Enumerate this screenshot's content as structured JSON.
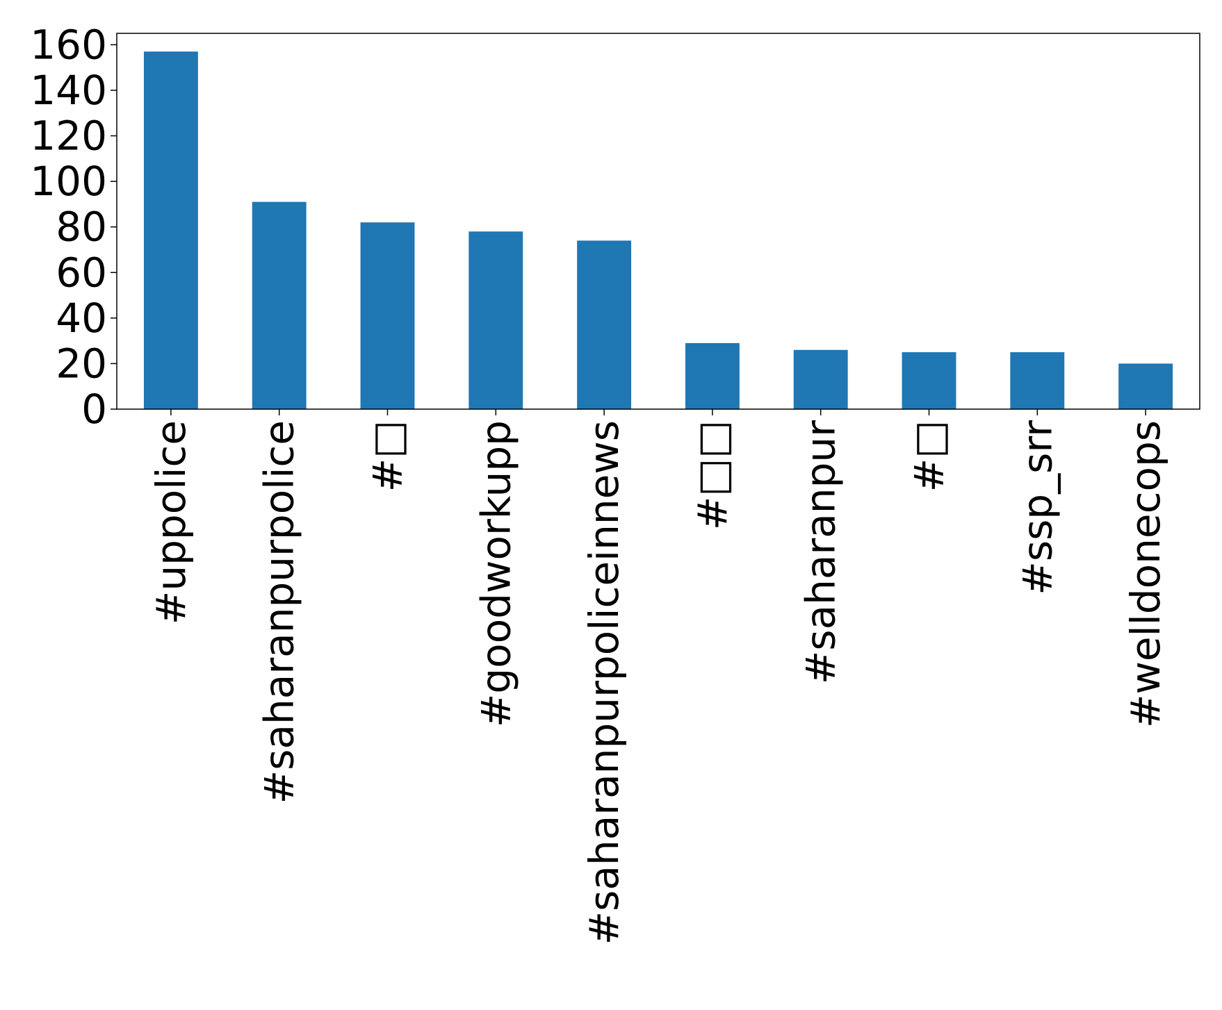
{
  "chart_data": {
    "type": "bar",
    "title": "",
    "xlabel": "",
    "ylabel": "",
    "categories": [
      "#uppolice",
      "#saharanpurpolice",
      "#□",
      "#goodworkupp",
      "#saharanpurpoliceinnews",
      "#□□",
      "#saharanpur",
      "#□",
      "#ssp_srr",
      "#welldonecops"
    ],
    "values": [
      157,
      91,
      82,
      78,
      74,
      29,
      26,
      25,
      25,
      20
    ],
    "ylim": [
      0,
      165
    ],
    "yticks": [
      0,
      20,
      40,
      60,
      80,
      100,
      120,
      140,
      160
    ],
    "bar_color": "#1f77b4",
    "grid": false,
    "legend": "none"
  }
}
